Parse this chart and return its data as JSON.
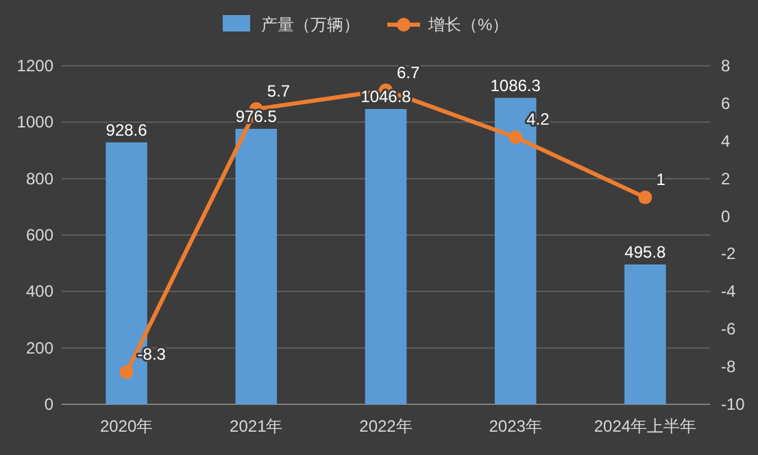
{
  "chart_data": {
    "type": "bar",
    "categories": [
      "2020年",
      "2021年",
      "2022年",
      "2023年",
      "2024年上半年"
    ],
    "series": [
      {
        "name": "产量（万辆）",
        "color": "#5b9bd5",
        "values": [
          928.6,
          976.5,
          1046.8,
          1086.3,
          495.8
        ]
      },
      {
        "name": "增长（%）",
        "type": "line",
        "axis": "y2",
        "color": "#ed7d31",
        "values": [
          -8.3,
          5.7,
          6.7,
          4.2,
          1
        ]
      }
    ],
    "ylim": [
      0,
      1200
    ],
    "yticks": [
      0,
      200,
      400,
      600,
      800,
      1000,
      1200
    ],
    "y2lim": [
      -10,
      8
    ],
    "y2ticks": [
      -10,
      -8,
      -6,
      -4,
      -2,
      0,
      2,
      4,
      6,
      8
    ],
    "grid": "y",
    "legend": "top",
    "marker": "circle",
    "data_labels": true
  }
}
